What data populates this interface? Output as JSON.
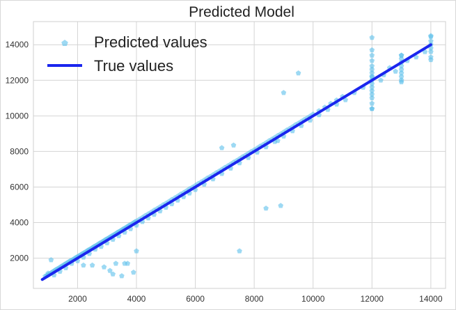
{
  "chart_data": {
    "type": "scatter",
    "title": "Predicted Model",
    "xlabel": "",
    "ylabel": "",
    "xlim": [
      500,
      14500
    ],
    "ylim": [
      300,
      15300
    ],
    "xticks": [
      2000,
      4000,
      6000,
      8000,
      10000,
      12000,
      14000
    ],
    "yticks": [
      2000,
      4000,
      6000,
      8000,
      10000,
      12000,
      14000
    ],
    "grid": true,
    "legend_position": "top-left",
    "series": [
      {
        "name": "Predicted values",
        "kind": "scatter",
        "marker": "pentagon",
        "color": "#5bc0eb",
        "x": [
          900,
          950,
          1000,
          1050,
          1100,
          1150,
          1200,
          1250,
          1300,
          1350,
          1400,
          1450,
          1500,
          1550,
          1600,
          1650,
          1700,
          1750,
          1800,
          1850,
          1900,
          1950,
          2000,
          2050,
          2100,
          2150,
          2200,
          2250,
          2300,
          2350,
          2400,
          2450,
          2500,
          2550,
          2600,
          2650,
          2700,
          2750,
          2800,
          2850,
          2900,
          2950,
          3000,
          3050,
          3100,
          3150,
          3200,
          3250,
          3300,
          3350,
          3400,
          3450,
          3500,
          3550,
          3600,
          3650,
          3700,
          3750,
          3800,
          3850,
          3900,
          3950,
          4000,
          4100,
          4200,
          4300,
          4400,
          4500,
          4600,
          4700,
          4800,
          4900,
          5000,
          5100,
          5200,
          5300,
          5400,
          5500,
          5600,
          5700,
          5800,
          5900,
          6000,
          6100,
          6200,
          6300,
          6400,
          6500,
          6600,
          6700,
          6800,
          6900,
          7000,
          7100,
          7200,
          7300,
          7400,
          7500,
          7600,
          7700,
          7800,
          7900,
          8000,
          8100,
          8200,
          8300,
          8400,
          8500,
          8600,
          8700,
          8800,
          8900,
          9000,
          9100,
          9200,
          9300,
          9400,
          9500,
          9600,
          9700,
          9800,
          9900,
          10000,
          10200,
          10400,
          10600,
          10800,
          11000,
          1000,
          1200,
          1400,
          1600,
          1800,
          2000,
          2200,
          2400,
          2600,
          2800,
          3000,
          3200,
          3400,
          3600,
          3800,
          4000,
          4200,
          4400,
          4600,
          4800,
          5000,
          5200,
          5400,
          5600,
          5800,
          6000,
          6300,
          6600,
          6900,
          7200,
          7500,
          7800,
          8100,
          8400,
          8700,
          9000,
          9300,
          9600,
          9900,
          10200,
          10500,
          10800,
          12000,
          12000,
          12000,
          12000,
          12000,
          12000,
          12000,
          12000,
          12000,
          12000,
          12000,
          12000,
          12000,
          12000,
          12000,
          12000,
          11100,
          11400,
          11700,
          12300,
          12400,
          12600,
          12800,
          13000,
          13000,
          13000,
          13000,
          13000,
          13000,
          13000,
          13000,
          13200,
          13500,
          13800,
          14000,
          14000,
          14000,
          14000,
          14000,
          14000,
          1100,
          2200,
          2500,
          2900,
          3100,
          3200,
          3300,
          3500,
          3600,
          3700,
          3900,
          4000,
          7500,
          8400,
          8900,
          9500,
          9000,
          6900,
          7300,
          8800,
          12000,
          12000,
          13000,
          13000,
          14000,
          14000
        ],
        "y": [
          980,
          1020,
          1060,
          1120,
          1170,
          1230,
          1280,
          1340,
          1380,
          1430,
          1480,
          1540,
          1580,
          1640,
          1690,
          1740,
          1790,
          1850,
          1880,
          1930,
          1980,
          2040,
          2080,
          2130,
          2180,
          2240,
          2280,
          2330,
          2380,
          2440,
          2480,
          2530,
          2580,
          2640,
          2680,
          2730,
          2780,
          2840,
          2880,
          2930,
          2980,
          3040,
          3080,
          3130,
          3180,
          3240,
          3280,
          3330,
          3380,
          3440,
          3480,
          3530,
          3580,
          3640,
          3680,
          3730,
          3780,
          3840,
          3880,
          3930,
          3980,
          4040,
          4080,
          4180,
          4280,
          4390,
          4480,
          4580,
          4690,
          4780,
          4880,
          4990,
          5080,
          5180,
          5290,
          5380,
          5480,
          5590,
          5680,
          5780,
          5890,
          5980,
          6080,
          6190,
          6280,
          6380,
          6490,
          6580,
          6680,
          6790,
          6880,
          6980,
          7090,
          7180,
          7280,
          7390,
          7480,
          7580,
          7690,
          7780,
          7880,
          7990,
          8080,
          8180,
          8290,
          8380,
          8480,
          8590,
          8680,
          8780,
          8890,
          8980,
          9080,
          9190,
          9280,
          9380,
          9490,
          9580,
          9680,
          9790,
          9880,
          9980,
          10090,
          10280,
          10480,
          10690,
          10880,
          11080,
          1150,
          1050,
          1250,
          1450,
          1700,
          1850,
          2050,
          2250,
          2500,
          2650,
          2850,
          3050,
          3250,
          3450,
          3650,
          3850,
          4050,
          4250,
          4450,
          4650,
          4850,
          5050,
          5250,
          5450,
          5650,
          5850,
          6150,
          6450,
          6750,
          7050,
          7350,
          7650,
          7950,
          8250,
          8550,
          8850,
          9150,
          9450,
          9750,
          10050,
          10350,
          10650,
          10400,
          10700,
          11000,
          11200,
          11400,
          11600,
          11800,
          12000,
          12200,
          12400,
          12600,
          12800,
          13100,
          13400,
          13700,
          14400,
          10900,
          11300,
          11600,
          12000,
          12300,
          12700,
          12500,
          12000,
          12200,
          12400,
          12600,
          12800,
          13000,
          13200,
          13400,
          13100,
          13300,
          13600,
          13300,
          13600,
          13800,
          14000,
          14200,
          14500,
          1900,
          1600,
          1600,
          1500,
          1300,
          1100,
          1700,
          1000,
          1700,
          1700,
          1200,
          2400,
          2400,
          4800,
          4950,
          12400,
          11300,
          8200,
          8350,
          8600,
          10400,
          12200,
          11900,
          13400,
          13150,
          14450
        ]
      },
      {
        "name": "True values",
        "kind": "line",
        "color": "#1a26ee",
        "x": [
          800,
          14000
        ],
        "y": [
          800,
          14000
        ]
      }
    ]
  }
}
